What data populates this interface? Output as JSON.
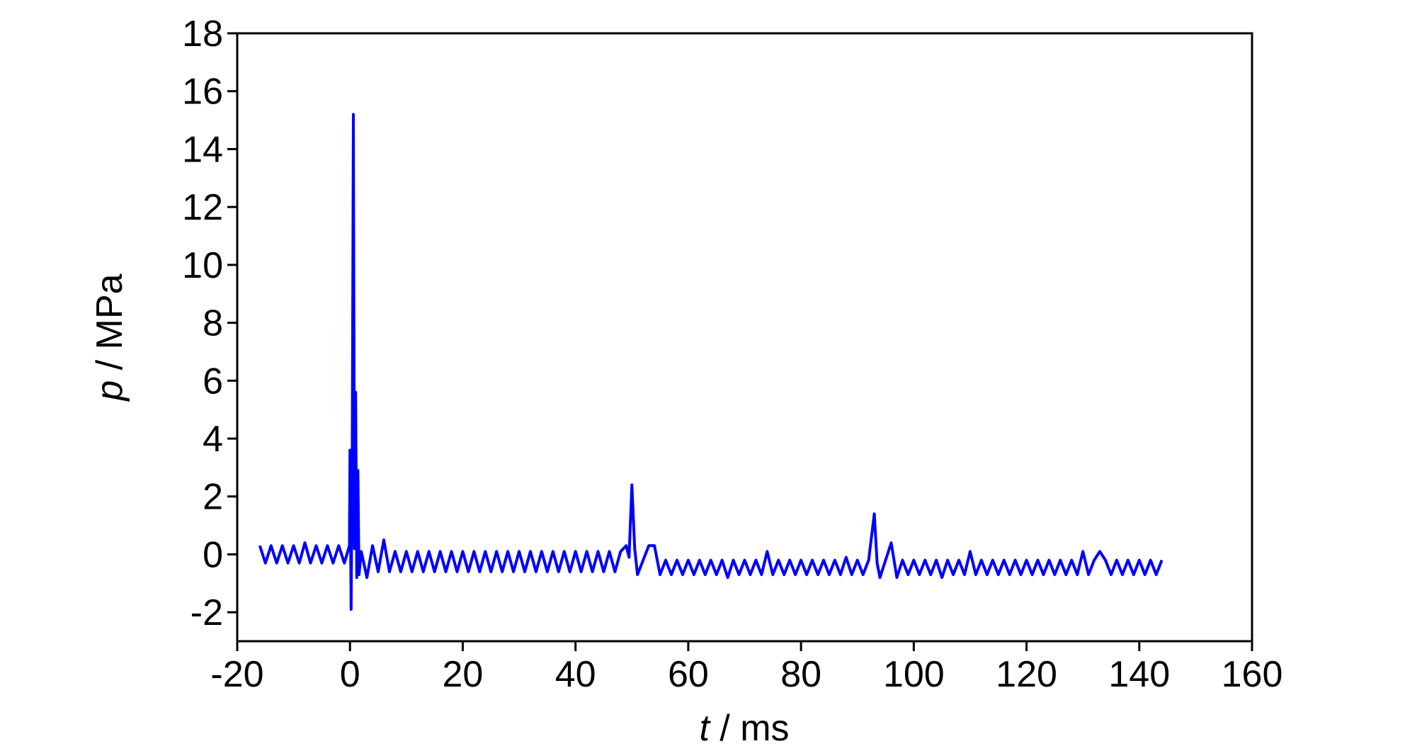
{
  "chart_data": {
    "type": "line",
    "xlabel": {
      "symbol": "t",
      "unit": " / ms"
    },
    "ylabel": {
      "symbol": "p",
      "unit": " / MPa"
    },
    "xlim": [
      -20,
      160
    ],
    "xticks": [
      -20,
      0,
      20,
      40,
      60,
      80,
      100,
      120,
      140,
      160
    ],
    "ylim": [
      -3,
      18
    ],
    "yticks": [
      -2,
      0,
      2,
      4,
      6,
      8,
      10,
      12,
      14,
      16,
      18
    ],
    "grid": false,
    "series": [
      {
        "color": "#0000ff",
        "x": [
          -16,
          -15,
          -14,
          -13,
          -12,
          -11,
          -10,
          -9,
          -8,
          -7,
          -6,
          -5,
          -4,
          -3,
          -2,
          -1,
          -0.1,
          0,
          0.2,
          0.4,
          0.6,
          0.8,
          1.0,
          1.2,
          1.4,
          1.6,
          2,
          3,
          4,
          5,
          6,
          7,
          8,
          9,
          10,
          11,
          12,
          13,
          14,
          15,
          16,
          17,
          18,
          19,
          20,
          21,
          22,
          23,
          24,
          25,
          26,
          27,
          28,
          29,
          30,
          31,
          32,
          33,
          34,
          35,
          36,
          37,
          38,
          39,
          40,
          41,
          42,
          43,
          44,
          45,
          46,
          47,
          48,
          49,
          49.5,
          50,
          50.5,
          51,
          52,
          53,
          54,
          55,
          56,
          57,
          58,
          59,
          60,
          61,
          62,
          63,
          64,
          65,
          66,
          67,
          68,
          69,
          70,
          71,
          72,
          73,
          74,
          75,
          76,
          77,
          78,
          79,
          80,
          81,
          82,
          83,
          84,
          85,
          86,
          87,
          88,
          89,
          90,
          91,
          92,
          93,
          93.5,
          94,
          95,
          96,
          97,
          98,
          99,
          100,
          101,
          102,
          103,
          104,
          105,
          106,
          107,
          108,
          109,
          110,
          111,
          112,
          113,
          114,
          115,
          116,
          117,
          118,
          119,
          120,
          121,
          122,
          123,
          124,
          125,
          126,
          127,
          128,
          129,
          130,
          131,
          132,
          133,
          134,
          135,
          136,
          137,
          138,
          139,
          140,
          141,
          142,
          143,
          144
        ],
        "values": [
          0.3,
          -0.3,
          0.3,
          -0.3,
          0.3,
          -0.3,
          0.3,
          -0.3,
          0.4,
          -0.3,
          0.3,
          -0.3,
          0.3,
          -0.3,
          0.3,
          -0.3,
          0.3,
          3.6,
          -1.9,
          3.5,
          15.2,
          0.2,
          5.6,
          -0.8,
          2.9,
          -0.7,
          0.1,
          -0.8,
          0.3,
          -0.6,
          0.5,
          -0.6,
          0.1,
          -0.6,
          0.1,
          -0.6,
          0.1,
          -0.6,
          0.1,
          -0.6,
          0.1,
          -0.6,
          0.1,
          -0.6,
          0.1,
          -0.6,
          0.1,
          -0.6,
          0.1,
          -0.6,
          0.1,
          -0.6,
          0.1,
          -0.6,
          0.1,
          -0.6,
          0.1,
          -0.6,
          0.1,
          -0.6,
          0.1,
          -0.6,
          0.1,
          -0.6,
          0.1,
          -0.6,
          0.1,
          -0.6,
          0.1,
          -0.6,
          0.1,
          -0.6,
          0.1,
          0.3,
          -0.1,
          2.4,
          0.2,
          -0.7,
          -0.2,
          0.3,
          0.3,
          -0.7,
          -0.2,
          -0.7,
          -0.2,
          -0.7,
          -0.2,
          -0.7,
          -0.2,
          -0.7,
          -0.2,
          -0.7,
          -0.2,
          -0.8,
          -0.2,
          -0.7,
          -0.2,
          -0.7,
          -0.2,
          -0.7,
          0.1,
          -0.7,
          -0.2,
          -0.7,
          -0.2,
          -0.7,
          -0.2,
          -0.7,
          -0.2,
          -0.7,
          -0.2,
          -0.7,
          -0.2,
          -0.7,
          -0.1,
          -0.7,
          -0.2,
          -0.7,
          -0.2,
          1.4,
          -0.3,
          -0.8,
          -0.2,
          0.4,
          -0.8,
          -0.2,
          -0.7,
          -0.2,
          -0.7,
          -0.2,
          -0.7,
          -0.2,
          -0.8,
          -0.2,
          -0.7,
          -0.2,
          -0.7,
          0.1,
          -0.7,
          -0.2,
          -0.7,
          -0.2,
          -0.7,
          -0.2,
          -0.7,
          -0.2,
          -0.7,
          -0.2,
          -0.7,
          -0.2,
          -0.7,
          -0.2,
          -0.7,
          -0.2,
          -0.7,
          -0.2,
          -0.7,
          0.1,
          -0.7,
          -0.2,
          0.1,
          -0.2,
          -0.7,
          -0.2,
          -0.7,
          -0.2,
          -0.7,
          -0.2,
          -0.7,
          -0.2,
          -0.7,
          -0.2
        ]
      }
    ]
  }
}
